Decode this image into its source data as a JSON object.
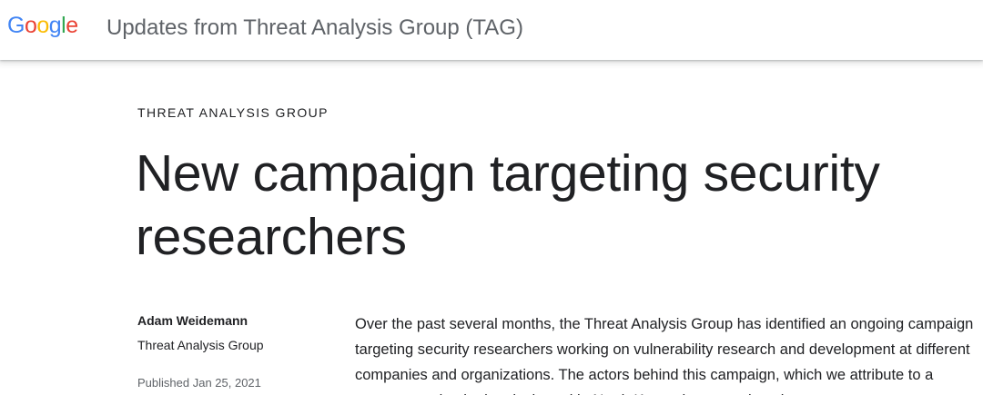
{
  "header": {
    "logo": [
      "G",
      "o",
      "o",
      "g",
      "l",
      "e"
    ],
    "logo_colors": [
      "#4285F4",
      "#EA4335",
      "#FBBC05",
      "#4285F4",
      "#34A853",
      "#EA4335"
    ],
    "site_title": "Updates from Threat Analysis Group (TAG)"
  },
  "article": {
    "eyebrow": "THREAT ANALYSIS GROUP",
    "title": "New campaign targeting security researchers",
    "author": {
      "name": "Adam Weidemann",
      "org": "Threat Analysis Group"
    },
    "published": "Published Jan 25, 2021",
    "body": "Over the past several months, the Threat Analysis Group has identified an ongoing campaign targeting security researchers working on vulnerability research and development at different companies and organizations. The actors behind this campaign, which we attribute to a government-backed entity based in North Korea, have employed"
  }
}
